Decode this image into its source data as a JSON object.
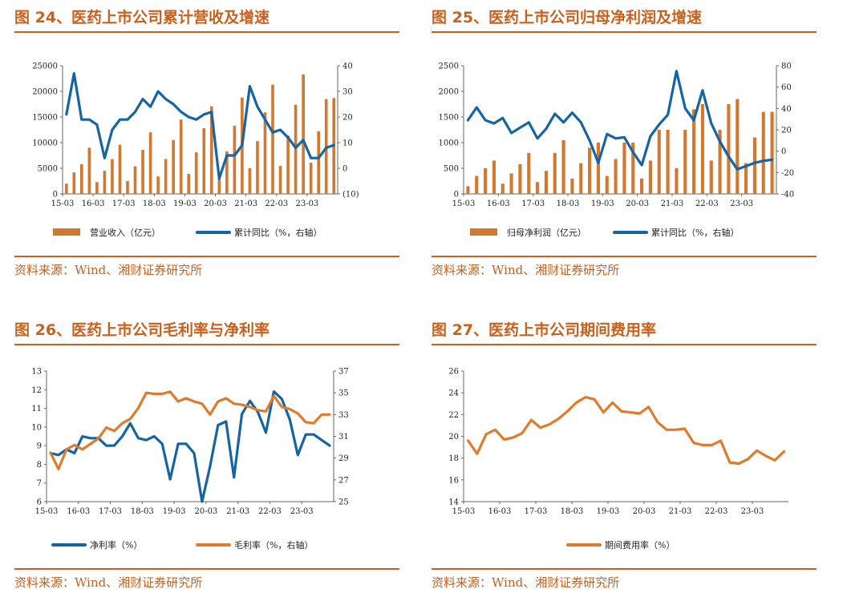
{
  "colors": {
    "bar": "#D2782F",
    "blue": "#1564A6",
    "orange": "#E07A2C",
    "title": "#C8601E"
  },
  "source_text": "资料来源：Wind、湘财证券研究所",
  "panels": [
    {
      "title": "图 24、医药上市公司累计营收及增速",
      "chart_data": {
        "type": "bar+line",
        "title": "图 24、医药上市公司累计营收及增速",
        "x_labels": [
          "15-03",
          "16-03",
          "17-03",
          "18-03",
          "19-03",
          "20-03",
          "21-03",
          "22-03",
          "23-03"
        ],
        "periods": 36,
        "left_axis": {
          "min": 0,
          "max": 25000,
          "ticks": [
            "0",
            "5000",
            "10000",
            "15000",
            "20000",
            "25000"
          ]
        },
        "right_axis": {
          "min": -10,
          "max": 40,
          "ticks": [
            "(10)",
            "0",
            "10",
            "20",
            "30",
            "40"
          ]
        },
        "series": [
          {
            "name": "营业收入（亿元）",
            "kind": "bar",
            "axis": "left",
            "values": [
              2000,
              4200,
              5800,
              9000,
              2300,
              4500,
              6800,
              9600,
              2500,
              5400,
              8600,
              12000,
              3400,
              6800,
              10500,
              14500,
              3900,
              8100,
              12800,
              17100,
              3000,
              8300,
              13300,
              18800,
              5000,
              10300,
              15900,
              21300,
              5500,
              11400,
              17400,
              23300,
              6100,
              12200,
              18500,
              18700
            ]
          },
          {
            "name": "累计同比（%，右轴）",
            "kind": "line",
            "axis": "right",
            "values": [
              21,
              37,
              19,
              19,
              17,
              4,
              15,
              19,
              19,
              22,
              27,
              24,
              30,
              27,
              25,
              22,
              20,
              19,
              21,
              22,
              -4,
              5,
              5,
              9,
              32,
              24,
              19,
              14,
              15,
              12,
              8,
              11,
              4,
              4,
              8,
              9
            ]
          }
        ]
      }
    },
    {
      "title": "图 25、医药上市公司归母净利润及增速",
      "chart_data": {
        "type": "bar+line",
        "title": "图 25、医药上市公司归母净利润及增速",
        "x_labels": [
          "15-03",
          "16-03",
          "17-03",
          "18-03",
          "19-03",
          "20-03",
          "21-03",
          "22-03",
          "23-03"
        ],
        "periods": 36,
        "left_axis": {
          "min": 0,
          "max": 2500,
          "ticks": [
            "0",
            "500",
            "1000",
            "1500",
            "2000",
            "2500"
          ]
        },
        "right_axis": {
          "min": -40,
          "max": 80,
          "ticks": [
            "-40",
            "-20",
            "0",
            "20",
            "40",
            "60",
            "80"
          ]
        },
        "series": [
          {
            "name": "归母净利润（亿元）",
            "kind": "bar",
            "axis": "left",
            "values": [
              150,
              350,
              500,
              650,
              200,
              400,
              580,
              800,
              230,
              450,
              800,
              1050,
              300,
              600,
              900,
              1000,
              350,
              680,
              1000,
              1000,
              300,
              650,
              1250,
              1250,
              500,
              1250,
              1650,
              1750,
              650,
              1250,
              1750,
              1850,
              600,
              1100,
              1600,
              1600
            ]
          },
          {
            "name": "累计同比（%，右轴）",
            "kind": "line",
            "axis": "right",
            "values": [
              29,
              41,
              29,
              26,
              31,
              17,
              22,
              27,
              12,
              21,
              35,
              27,
              36,
              27,
              10,
              -11,
              16,
              12,
              13,
              -1,
              -13,
              14,
              25,
              34,
              75,
              40,
              29,
              57,
              26,
              9,
              -5,
              -17,
              -14,
              -11,
              -9,
              -8
            ]
          }
        ]
      }
    },
    {
      "title": "图 26、医药上市公司毛利率与净利率",
      "chart_data": {
        "type": "line",
        "title": "图 26、医药上市公司毛利率与净利率",
        "x_labels": [
          "15-03",
          "16-03",
          "17-03",
          "18-03",
          "19-03",
          "20-03",
          "21-03",
          "22-03",
          "23-03"
        ],
        "periods": 36,
        "left_axis": {
          "min": 6,
          "max": 13,
          "ticks": [
            "6",
            "7",
            "8",
            "9",
            "10",
            "11",
            "12",
            "13"
          ]
        },
        "right_axis": {
          "min": 25,
          "max": 37,
          "ticks": [
            "25",
            "27",
            "29",
            "31",
            "33",
            "35",
            "37"
          ]
        },
        "series": [
          {
            "name": "净利率（%）",
            "axis": "left",
            "values": [
              8.6,
              8.5,
              8.8,
              8.6,
              9.5,
              9.4,
              9.4,
              9.0,
              9.0,
              9.5,
              10.2,
              9.4,
              9.3,
              9.5,
              9.1,
              7.2,
              9.1,
              9.1,
              8.6,
              6.0,
              7.9,
              10.1,
              10.3,
              7.3,
              10.7,
              11.4,
              10.8,
              9.7,
              11.9,
              11.5,
              10.4,
              8.5,
              9.6,
              9.6,
              9.3,
              9.0
            ]
          },
          {
            "name": "毛利率（%，右轴）",
            "axis": "right",
            "values": [
              29.5,
              28,
              29.8,
              30.2,
              29.8,
              30.3,
              30.8,
              31.8,
              31.5,
              32.2,
              32.6,
              33.6,
              35,
              34.9,
              34.9,
              35.1,
              34.2,
              34.5,
              34.2,
              34,
              33,
              34.2,
              34.5,
              34,
              33.9,
              33.7,
              33.4,
              33.3,
              34.7,
              33.7,
              33.5,
              33.1,
              32.3,
              32.2,
              33,
              33
            ]
          }
        ]
      }
    },
    {
      "title": "图 27、医药上市公司期间费用率",
      "chart_data": {
        "type": "line",
        "title": "图 27、医药上市公司期间费用率",
        "x_labels": [
          "15-03",
          "16-03",
          "17-03",
          "18-03",
          "19-03",
          "20-03",
          "21-03",
          "22-03",
          "23-03"
        ],
        "periods": 36,
        "left_axis": {
          "min": 14,
          "max": 26,
          "ticks": [
            "14",
            "16",
            "18",
            "20",
            "22",
            "24",
            "26"
          ]
        },
        "series": [
          {
            "name": "期间费用率（%）",
            "axis": "left",
            "values": [
              19.6,
              18.4,
              20.2,
              20.6,
              19.7,
              19.9,
              20.3,
              21.5,
              20.8,
              21.1,
              21.6,
              22.3,
              23.1,
              23.6,
              23.4,
              22.2,
              23.1,
              22.3,
              22.2,
              22.1,
              22.7,
              21.3,
              20.6,
              20.6,
              20.7,
              19.4,
              19.2,
              19.2,
              19.6,
              17.6,
              17.5,
              17.9,
              18.7,
              18.2,
              17.8,
              18.6
            ]
          }
        ]
      }
    }
  ]
}
